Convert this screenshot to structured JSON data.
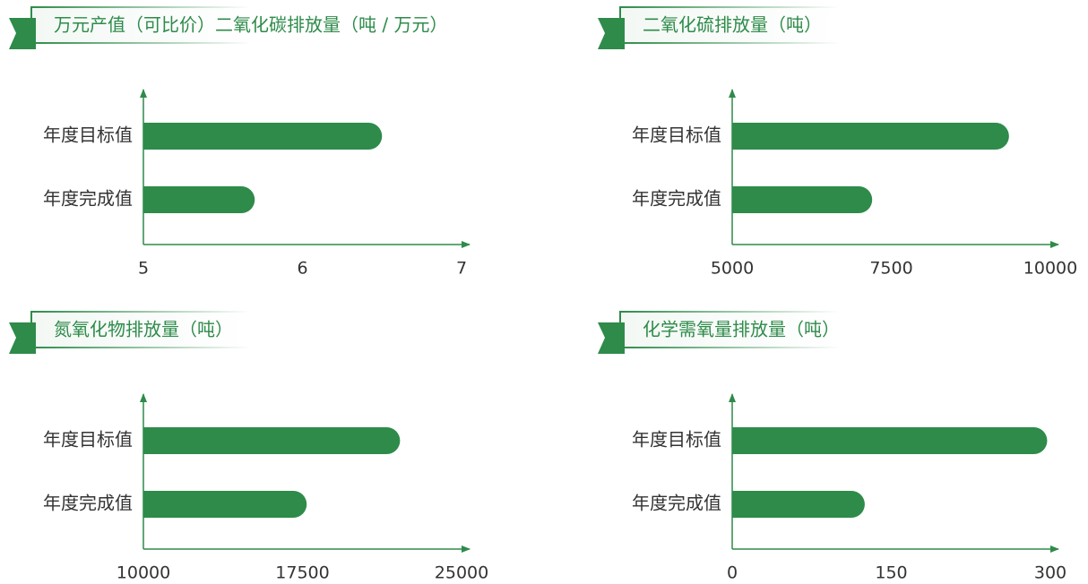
{
  "chart_data": [
    {
      "type": "bar",
      "title": "万元产值（可比价）二氧化碳排放量（吨 / 万元）",
      "categories": [
        "年度目标值",
        "年度完成值"
      ],
      "values": [
        6.5,
        5.7
      ],
      "color": "#2e8b4a",
      "xlim": [
        5,
        7
      ],
      "xticks": [
        5,
        6,
        7
      ]
    },
    {
      "type": "bar",
      "title": "二氧化硫排放量（吨）",
      "categories": [
        "年度目标值",
        "年度完成值"
      ],
      "values": [
        9350,
        7200
      ],
      "color": "#2e8b4a",
      "xlim": [
        5000,
        10000
      ],
      "xticks": [
        5000,
        7500,
        10000
      ]
    },
    {
      "type": "bar",
      "title": "氮氧化物排放量（吨）",
      "categories": [
        "年度目标值",
        "年度完成值"
      ],
      "values": [
        22100,
        17700
      ],
      "color": "#2e8b4a",
      "xlim": [
        10000,
        25000
      ],
      "xticks": [
        10000,
        17500,
        25000
      ]
    },
    {
      "type": "bar",
      "title": "化学需氧量排放量（吨）",
      "categories": [
        "年度目标值",
        "年度完成值"
      ],
      "values": [
        297,
        125
      ],
      "color": "#2e8b4a",
      "xlim": [
        0,
        300
      ],
      "xticks": [
        0,
        150,
        300
      ]
    }
  ]
}
